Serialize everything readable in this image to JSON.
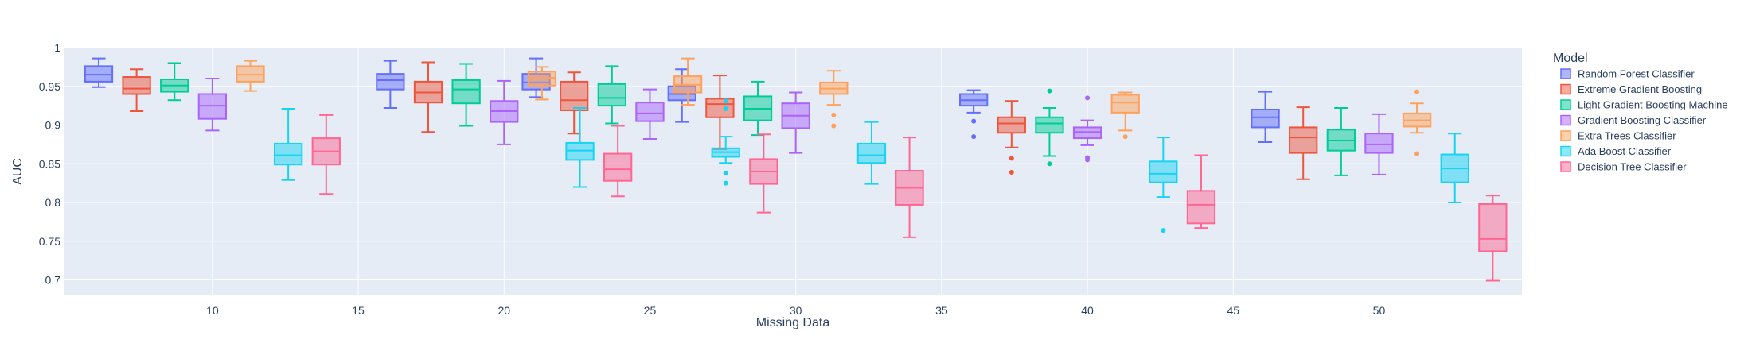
{
  "chart_data": {
    "type": "box",
    "xlabel": "Missing Data",
    "ylabel": "AUC",
    "x_range": [
      4.9,
      54.9
    ],
    "ylim": [
      0.68,
      1.0
    ],
    "x_ticks": [
      10,
      15,
      20,
      25,
      30,
      35,
      40,
      45,
      50
    ],
    "y_ticks": [
      0.7,
      0.75,
      0.8,
      0.85,
      0.9,
      0.95,
      1
    ],
    "y_tick_labels": [
      "0.7",
      "0.75",
      "0.8",
      "0.85",
      "0.9",
      "0.95",
      "1"
    ],
    "categories": [
      10,
      20,
      25,
      30,
      40,
      50
    ],
    "legend_title": "Model",
    "legend_position": "right",
    "grid": true,
    "background": "#e5ecf6",
    "series": [
      {
        "name": "Random Forest Classifier",
        "color": "#636efa",
        "fill": "rgba(99,110,250,0.5)",
        "boxes": [
          {
            "x": 10,
            "min": 0.949,
            "q1": 0.956,
            "median": 0.965,
            "q3": 0.976,
            "max": 0.986,
            "outliers": []
          },
          {
            "x": 20,
            "min": 0.922,
            "q1": 0.946,
            "median": 0.958,
            "q3": 0.966,
            "max": 0.983,
            "outliers": []
          },
          {
            "x": 25,
            "min": 0.936,
            "q1": 0.946,
            "median": 0.955,
            "q3": 0.966,
            "max": 0.986,
            "outliers": []
          },
          {
            "x": 30,
            "min": 0.904,
            "q1": 0.932,
            "median": 0.94,
            "q3": 0.95,
            "max": 0.972,
            "outliers": []
          },
          {
            "x": 40,
            "min": 0.916,
            "q1": 0.925,
            "median": 0.932,
            "q3": 0.94,
            "max": 0.945,
            "outliers": [
              0.905,
              0.885
            ]
          },
          {
            "x": 50,
            "min": 0.878,
            "q1": 0.897,
            "median": 0.91,
            "q3": 0.92,
            "max": 0.943,
            "outliers": []
          }
        ]
      },
      {
        "name": "Extreme Gradient Boosting",
        "color": "#ef553b",
        "fill": "rgba(239,85,59,0.5)",
        "boxes": [
          {
            "x": 10,
            "min": 0.918,
            "q1": 0.94,
            "median": 0.947,
            "q3": 0.962,
            "max": 0.972,
            "outliers": []
          },
          {
            "x": 20,
            "min": 0.891,
            "q1": 0.929,
            "median": 0.942,
            "q3": 0.956,
            "max": 0.981,
            "outliers": []
          },
          {
            "x": 25,
            "min": 0.889,
            "q1": 0.919,
            "median": 0.932,
            "q3": 0.956,
            "max": 0.968,
            "outliers": []
          },
          {
            "x": 30,
            "min": 0.869,
            "q1": 0.91,
            "median": 0.927,
            "q3": 0.934,
            "max": 0.964,
            "outliers": []
          },
          {
            "x": 40,
            "min": 0.871,
            "q1": 0.89,
            "median": 0.902,
            "q3": 0.91,
            "max": 0.931,
            "outliers": [
              0.857,
              0.839
            ]
          },
          {
            "x": 50,
            "min": 0.83,
            "q1": 0.864,
            "median": 0.884,
            "q3": 0.897,
            "max": 0.923,
            "outliers": []
          }
        ]
      },
      {
        "name": "Light Gradient Boosting Machine",
        "color": "#00cc96",
        "fill": "rgba(0,204,150,0.5)",
        "boxes": [
          {
            "x": 10,
            "min": 0.932,
            "q1": 0.943,
            "median": 0.951,
            "q3": 0.959,
            "max": 0.98,
            "outliers": []
          },
          {
            "x": 20,
            "min": 0.899,
            "q1": 0.928,
            "median": 0.946,
            "q3": 0.958,
            "max": 0.979,
            "outliers": []
          },
          {
            "x": 25,
            "min": 0.902,
            "q1": 0.925,
            "median": 0.935,
            "q3": 0.953,
            "max": 0.976,
            "outliers": []
          },
          {
            "x": 30,
            "min": 0.887,
            "q1": 0.906,
            "median": 0.921,
            "q3": 0.937,
            "max": 0.956,
            "outliers": []
          },
          {
            "x": 40,
            "min": 0.86,
            "q1": 0.89,
            "median": 0.902,
            "q3": 0.91,
            "max": 0.922,
            "outliers": [
              0.944,
              0.85
            ]
          },
          {
            "x": 50,
            "min": 0.835,
            "q1": 0.867,
            "median": 0.88,
            "q3": 0.894,
            "max": 0.922,
            "outliers": []
          }
        ]
      },
      {
        "name": "Gradient Boosting Classifier",
        "color": "#ab63fa",
        "fill": "rgba(171,99,250,0.5)",
        "boxes": [
          {
            "x": 10,
            "min": 0.893,
            "q1": 0.908,
            "median": 0.925,
            "q3": 0.94,
            "max": 0.96,
            "outliers": []
          },
          {
            "x": 20,
            "min": 0.875,
            "q1": 0.904,
            "median": 0.918,
            "q3": 0.931,
            "max": 0.957,
            "outliers": []
          },
          {
            "x": 25,
            "min": 0.882,
            "q1": 0.905,
            "median": 0.915,
            "q3": 0.929,
            "max": 0.946,
            "outliers": []
          },
          {
            "x": 30,
            "min": 0.864,
            "q1": 0.896,
            "median": 0.912,
            "q3": 0.928,
            "max": 0.942,
            "outliers": []
          },
          {
            "x": 40,
            "min": 0.874,
            "q1": 0.883,
            "median": 0.891,
            "q3": 0.897,
            "max": 0.906,
            "outliers": [
              0.935,
              0.858,
              0.855
            ]
          },
          {
            "x": 50,
            "min": 0.836,
            "q1": 0.864,
            "median": 0.875,
            "q3": 0.889,
            "max": 0.914,
            "outliers": []
          }
        ]
      },
      {
        "name": "Extra Trees Classifier",
        "color": "#ffa15a",
        "fill": "rgba(255,161,90,0.5)",
        "boxes": [
          {
            "x": 10,
            "min": 0.944,
            "q1": 0.956,
            "median": 0.965,
            "q3": 0.976,
            "max": 0.983,
            "outliers": []
          },
          {
            "x": 20,
            "min": 0.933,
            "q1": 0.951,
            "median": 0.961,
            "q3": 0.969,
            "max": 0.975,
            "outliers": []
          },
          {
            "x": 25,
            "min": 0.926,
            "q1": 0.942,
            "median": 0.952,
            "q3": 0.963,
            "max": 0.986,
            "outliers": []
          },
          {
            "x": 30,
            "min": 0.926,
            "q1": 0.94,
            "median": 0.947,
            "q3": 0.955,
            "max": 0.97,
            "outliers": [
              0.913,
              0.899
            ]
          },
          {
            "x": 40,
            "min": 0.893,
            "q1": 0.916,
            "median": 0.929,
            "q3": 0.939,
            "max": 0.942,
            "outliers": [
              0.885
            ]
          },
          {
            "x": 50,
            "min": 0.89,
            "q1": 0.898,
            "median": 0.906,
            "q3": 0.915,
            "max": 0.928,
            "outliers": [
              0.943,
              0.863
            ]
          }
        ]
      },
      {
        "name": "Ada Boost Classifier",
        "color": "#19d3f3",
        "fill": "rgba(25,211,243,0.5)",
        "boxes": [
          {
            "x": 10,
            "min": 0.829,
            "q1": 0.849,
            "median": 0.861,
            "q3": 0.876,
            "max": 0.921,
            "outliers": []
          },
          {
            "x": 20,
            "min": 0.82,
            "q1": 0.855,
            "median": 0.867,
            "q3": 0.877,
            "max": 0.922,
            "outliers": []
          },
          {
            "x": 25,
            "min": 0.851,
            "q1": 0.859,
            "median": 0.865,
            "q3": 0.87,
            "max": 0.885,
            "outliers": [
              0.931,
              0.921,
              0.838,
              0.825
            ]
          },
          {
            "x": 30,
            "min": 0.824,
            "q1": 0.851,
            "median": 0.861,
            "q3": 0.876,
            "max": 0.904,
            "outliers": []
          },
          {
            "x": 40,
            "min": 0.807,
            "q1": 0.826,
            "median": 0.837,
            "q3": 0.853,
            "max": 0.884,
            "outliers": [
              0.764
            ]
          },
          {
            "x": 50,
            "min": 0.8,
            "q1": 0.826,
            "median": 0.844,
            "q3": 0.862,
            "max": 0.889,
            "outliers": []
          }
        ]
      },
      {
        "name": "Decision Tree Classifier",
        "color": "#ff6692",
        "fill": "rgba(255,102,146,0.5)",
        "boxes": [
          {
            "x": 10,
            "min": 0.811,
            "q1": 0.849,
            "median": 0.866,
            "q3": 0.883,
            "max": 0.913,
            "outliers": []
          },
          {
            "x": 20,
            "min": 0.808,
            "q1": 0.828,
            "median": 0.843,
            "q3": 0.863,
            "max": 0.899,
            "outliers": []
          },
          {
            "x": 25,
            "min": 0.787,
            "q1": 0.824,
            "median": 0.84,
            "q3": 0.856,
            "max": 0.888,
            "outliers": []
          },
          {
            "x": 30,
            "min": 0.755,
            "q1": 0.797,
            "median": 0.819,
            "q3": 0.841,
            "max": 0.884,
            "outliers": []
          },
          {
            "x": 40,
            "min": 0.767,
            "q1": 0.773,
            "median": 0.797,
            "q3": 0.815,
            "max": 0.861,
            "outliers": []
          },
          {
            "x": 50,
            "min": 0.699,
            "q1": 0.737,
            "median": 0.753,
            "q3": 0.798,
            "max": 0.809,
            "outliers": []
          }
        ]
      }
    ]
  }
}
